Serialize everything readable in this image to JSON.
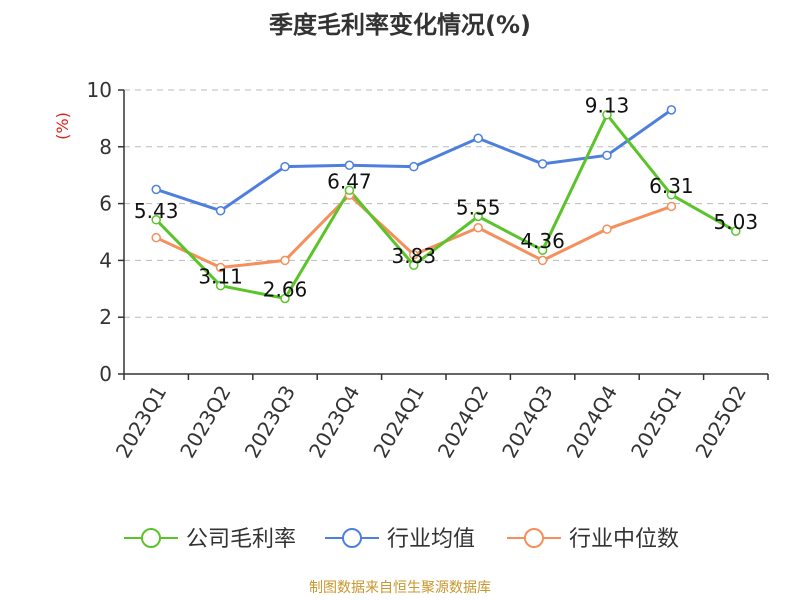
{
  "chart_data": {
    "type": "line",
    "title": "季度毛利率变化情况(%)",
    "ylabel": "(%)",
    "ylim": [
      0,
      10
    ],
    "yticks": [
      "0",
      "2",
      "4",
      "6",
      "8",
      "10"
    ],
    "categories": [
      "2023Q1",
      "2023Q2",
      "2023Q3",
      "2023Q4",
      "2024Q1",
      "2024Q2",
      "2024Q3",
      "2024Q4",
      "2025Q1",
      "2025Q2"
    ],
    "grid": true,
    "legend_position": "bottom",
    "series": [
      {
        "name": "公司毛利率",
        "color": "#5ac42a",
        "values": [
          5.43,
          3.11,
          2.66,
          6.47,
          3.83,
          5.55,
          4.36,
          9.13,
          6.31,
          5.03
        ],
        "labels": [
          "5.43",
          "3.11",
          "2.66",
          "6.47",
          "3.83",
          "5.55",
          "4.36",
          "9.13",
          "6.31",
          "5.03"
        ]
      },
      {
        "name": "行业均值",
        "color": "#4f7fde",
        "values": [
          6.5,
          5.75,
          7.3,
          7.35,
          7.3,
          8.3,
          7.4,
          7.7,
          9.3,
          null
        ]
      },
      {
        "name": "行业中位数",
        "color": "#f58f5b",
        "values": [
          4.8,
          3.75,
          4.0,
          6.3,
          4.2,
          5.15,
          4.0,
          5.1,
          5.9,
          null
        ]
      }
    ]
  },
  "source": "制图数据来自恒生聚源数据库"
}
